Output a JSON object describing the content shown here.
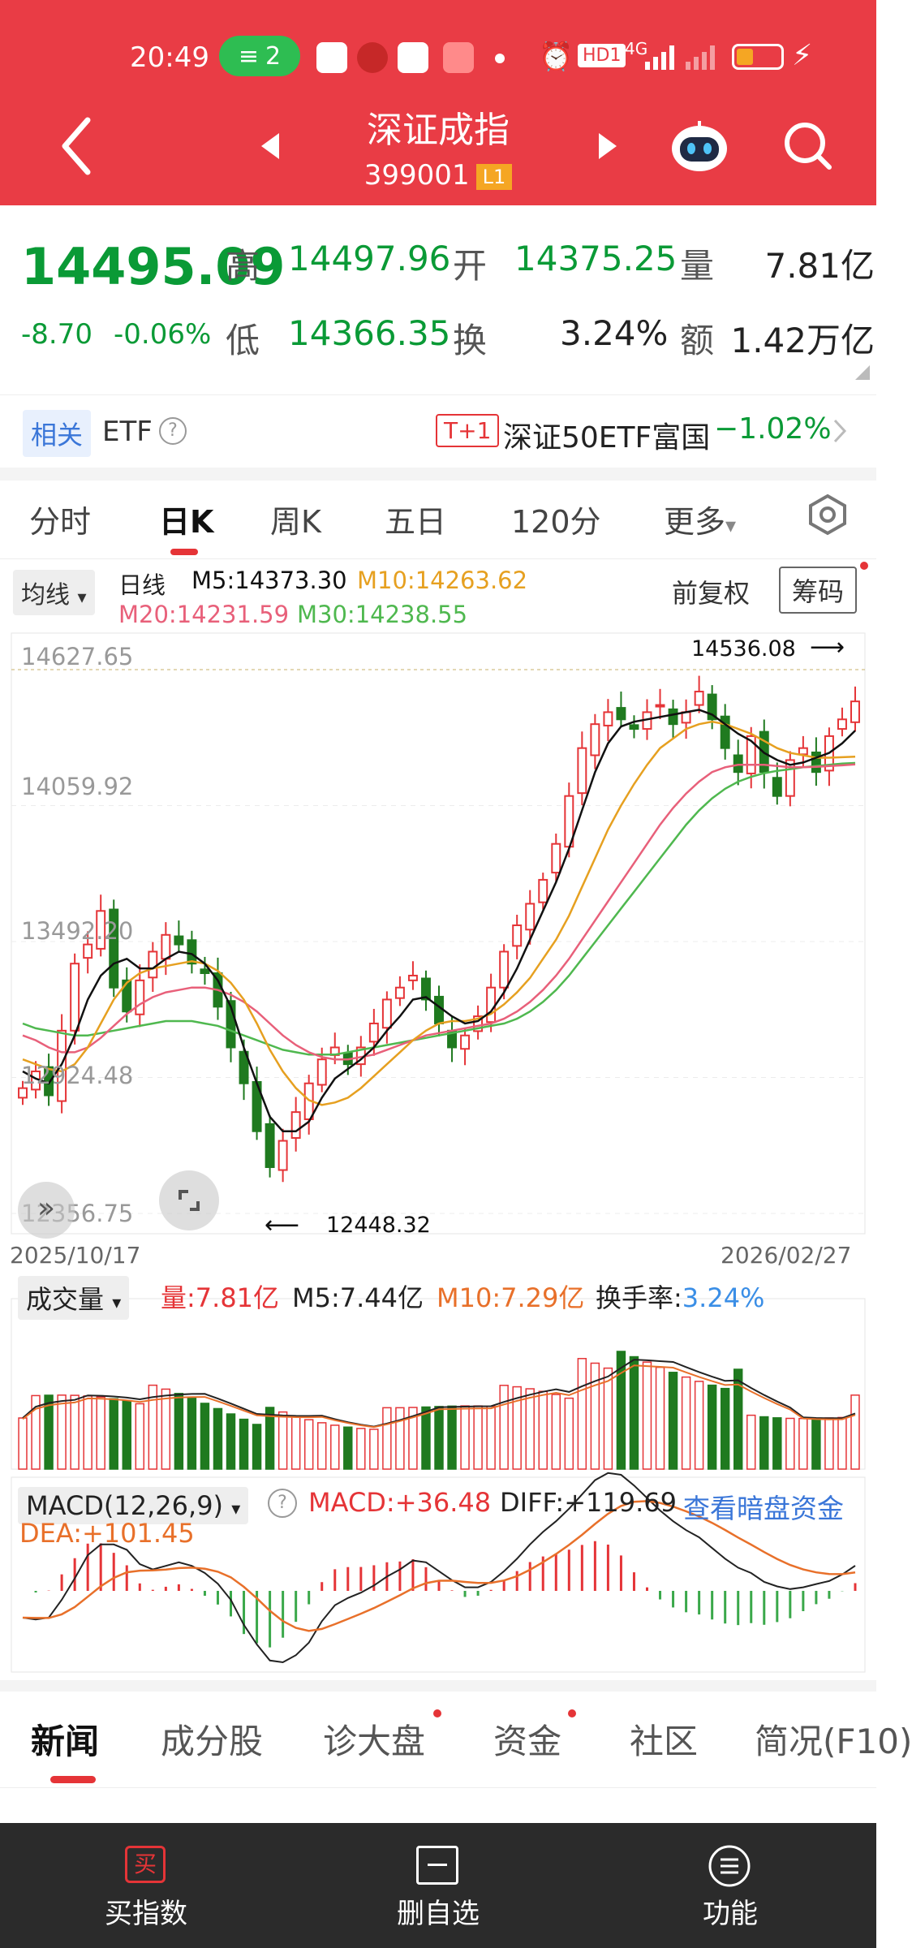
{
  "status_bar": {
    "time": "20:49",
    "wifi_count": "2",
    "hd_label": "HD1",
    "network": "4G"
  },
  "header": {
    "name": "深证成指",
    "code": "399001",
    "level": "L1"
  },
  "quote": {
    "price": "14495.09",
    "change": "-8.70",
    "change_pct": "-0.06%",
    "high_label": "高",
    "high": "14497.96",
    "open_label": "开",
    "open": "14375.25",
    "vol_label": "量",
    "vol": "7.81亿",
    "low_label": "低",
    "low": "14366.35",
    "turn_label": "换",
    "turn": "3.24%",
    "amt_label": "额",
    "amt": "1.42万亿"
  },
  "etf": {
    "tag": "相关",
    "label": "ETF",
    "t1": "T+1",
    "fund": "深证50ETF富国",
    "pct": "−1.02%"
  },
  "period_tabs": [
    "分时",
    "日K",
    "周K",
    "五日",
    "120分",
    "更多"
  ],
  "ma_bar": {
    "selector": "均线",
    "type": "日线",
    "m5": "M5:14373.30",
    "m10": "M10:14263.62",
    "m20": "M20:14231.59",
    "m30": "M30:14238.55",
    "adjust": "前复权",
    "chip": "筹码"
  },
  "colors": {
    "red": "#e53437",
    "green": "#1f7a1f",
    "m5": "#111111",
    "m10": "#e6a020",
    "m20": "#e8607a",
    "m30": "#4fb84f"
  },
  "chart_data": {
    "type": "candlestick",
    "y_axis_labels": [
      "14627.65",
      "14059.92",
      "13492.20",
      "12924.48",
      "12356.75"
    ],
    "y_values": [
      14627.65,
      14059.92,
      13492.2,
      12924.48,
      12356.75
    ],
    "max_label": "14536.08",
    "min_label": "12448.32",
    "start_date": "2025/10/17",
    "end_date": "2026/02/27",
    "closes": [
      12880,
      12950,
      12850,
      13120,
      13400,
      13480,
      13620,
      13300,
      13200,
      13330,
      13450,
      13520,
      13480,
      13400,
      13360,
      13220,
      13050,
      12900,
      12700,
      12550,
      12660,
      12780,
      12900,
      13000,
      13050,
      12980,
      13050,
      13150,
      13250,
      13300,
      13350,
      13250,
      13150,
      13050,
      13100,
      13180,
      13300,
      13450,
      13560,
      13650,
      13750,
      13900,
      14100,
      14300,
      14400,
      14450,
      14420,
      14380,
      14450,
      14480,
      14400,
      14450,
      14536,
      14420,
      14300,
      14200,
      14350,
      14200,
      14100,
      14250,
      14300,
      14200,
      14350,
      14420,
      14495
    ],
    "m5": [
      12950,
      12920,
      12900,
      12980,
      13100,
      13250,
      13350,
      13400,
      13420,
      13380,
      13380,
      13420,
      13450,
      13440,
      13400,
      13330,
      13220,
      13050,
      12900,
      12760,
      12700,
      12700,
      12740,
      12840,
      12920,
      12960,
      13000,
      13050,
      13120,
      13180,
      13250,
      13260,
      13220,
      13180,
      13150,
      13160,
      13200,
      13280,
      13380,
      13500,
      13620,
      13740,
      13880,
      14040,
      14200,
      14320,
      14390,
      14410,
      14420,
      14430,
      14440,
      14450,
      14460,
      14440,
      14400,
      14360,
      14330,
      14280,
      14250,
      14230,
      14240,
      14260,
      14280,
      14320,
      14373
    ],
    "m10": [
      13000,
      12980,
      12960,
      12950,
      12980,
      13050,
      13150,
      13250,
      13320,
      13360,
      13380,
      13390,
      13400,
      13410,
      13400,
      13370,
      13320,
      13250,
      13150,
      13040,
      12950,
      12880,
      12830,
      12810,
      12820,
      12840,
      12880,
      12930,
      12980,
      13030,
      13080,
      13120,
      13150,
      13160,
      13160,
      13170,
      13190,
      13230,
      13280,
      13340,
      13420,
      13500,
      13600,
      13720,
      13840,
      13960,
      14060,
      14150,
      14230,
      14300,
      14340,
      14380,
      14400,
      14410,
      14400,
      14380,
      14360,
      14330,
      14300,
      14280,
      14270,
      14260,
      14260,
      14262,
      14264
    ],
    "m20": [
      13100,
      13080,
      13050,
      13030,
      13030,
      13050,
      13090,
      13140,
      13190,
      13230,
      13260,
      13280,
      13290,
      13300,
      13300,
      13290,
      13270,
      13240,
      13200,
      13150,
      13100,
      13060,
      13030,
      13010,
      13000,
      13000,
      13010,
      13020,
      13040,
      13060,
      13080,
      13100,
      13110,
      13120,
      13130,
      13140,
      13150,
      13170,
      13200,
      13240,
      13290,
      13350,
      13420,
      13500,
      13580,
      13660,
      13740,
      13820,
      13900,
      13980,
      14050,
      14110,
      14160,
      14200,
      14220,
      14230,
      14230,
      14230,
      14225,
      14220,
      14220,
      14222,
      14225,
      14228,
      14232
    ],
    "m30": [
      13150,
      13130,
      13120,
      13110,
      13100,
      13100,
      13110,
      13120,
      13130,
      13140,
      13150,
      13160,
      13160,
      13160,
      13150,
      13140,
      13120,
      13100,
      13080,
      13060,
      13040,
      13030,
      13020,
      13020,
      13020,
      13030,
      13040,
      13050,
      13060,
      13070,
      13080,
      13090,
      13100,
      13110,
      13120,
      13130,
      13140,
      13150,
      13170,
      13200,
      13240,
      13290,
      13350,
      13420,
      13490,
      13560,
      13630,
      13700,
      13770,
      13840,
      13910,
      13980,
      14040,
      14090,
      14130,
      14160,
      14180,
      14195,
      14205,
      14212,
      14220,
      14225,
      14230,
      14235,
      14238
    ]
  },
  "volume": {
    "selector": "成交量",
    "vol": "量:7.81亿",
    "m5": "M5:7.44亿",
    "m10": "M10:7.29亿",
    "turn_label": "换手率:",
    "turn": "3.24%"
  },
  "macd": {
    "selector": "MACD(12,26,9)",
    "macd": "MACD:+36.48",
    "diff": "DIFF:+119.69",
    "dark_pool": "查看暗盘资金",
    "dea": "DEA:+101.45"
  },
  "news_tabs": [
    "新闻",
    "成分股",
    "诊大盘",
    "资金",
    "社区",
    "简况(F10)"
  ],
  "bottom_tabs": [
    "买指数",
    "删自选",
    "功能"
  ],
  "bottom_icon_text": "买"
}
